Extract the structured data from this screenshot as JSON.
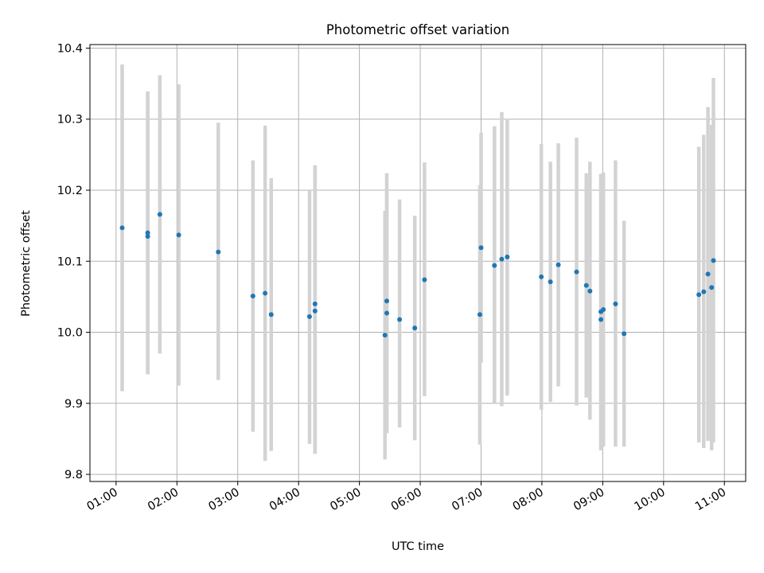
{
  "chart_data": {
    "type": "scatter",
    "title": "Photometric offset variation",
    "xlabel": "UTC time",
    "ylabel": "Photometric offset",
    "x_unit": "hours UTC",
    "xlim": [
      0.57,
      11.35
    ],
    "ylim": [
      9.79,
      10.405
    ],
    "x_ticks": [
      {
        "value": 1,
        "label": "01:00"
      },
      {
        "value": 2,
        "label": "02:00"
      },
      {
        "value": 3,
        "label": "03:00"
      },
      {
        "value": 4,
        "label": "04:00"
      },
      {
        "value": 5,
        "label": "05:00"
      },
      {
        "value": 6,
        "label": "06:00"
      },
      {
        "value": 7,
        "label": "07:00"
      },
      {
        "value": 8,
        "label": "08:00"
      },
      {
        "value": 9,
        "label": "09:00"
      },
      {
        "value": 10,
        "label": "10:00"
      },
      {
        "value": 11,
        "label": "11:00"
      }
    ],
    "y_ticks": [
      {
        "value": 9.8,
        "label": "9.8"
      },
      {
        "value": 9.9,
        "label": "9.9"
      },
      {
        "value": 10.0,
        "label": "10.0"
      },
      {
        "value": 10.1,
        "label": "10.1"
      },
      {
        "value": 10.2,
        "label": "10.2"
      },
      {
        "value": 10.3,
        "label": "10.3"
      },
      {
        "value": 10.4,
        "label": "10.4"
      }
    ],
    "grid": true,
    "point_color": "#1f77b4",
    "errorbar_color": "#d3d3d3",
    "points": [
      {
        "x": 1.1,
        "y": 10.147,
        "lo": 9.917,
        "hi": 10.377
      },
      {
        "x": 1.52,
        "y": 10.14,
        "lo": 9.941,
        "hi": 10.339
      },
      {
        "x": 1.52,
        "y": 10.135,
        "lo": 9.941,
        "hi": 10.339
      },
      {
        "x": 1.72,
        "y": 10.166,
        "lo": 9.97,
        "hi": 10.362
      },
      {
        "x": 2.03,
        "y": 10.137,
        "lo": 9.925,
        "hi": 10.349
      },
      {
        "x": 2.68,
        "y": 10.113,
        "lo": 9.933,
        "hi": 10.295
      },
      {
        "x": 3.25,
        "y": 10.051,
        "lo": 9.86,
        "hi": 10.242
      },
      {
        "x": 3.45,
        "y": 10.055,
        "lo": 9.819,
        "hi": 10.291
      },
      {
        "x": 3.55,
        "y": 10.025,
        "lo": 9.833,
        "hi": 10.217
      },
      {
        "x": 4.18,
        "y": 10.022,
        "lo": 9.843,
        "hi": 10.2
      },
      {
        "x": 4.27,
        "y": 10.04,
        "lo": 9.829,
        "hi": 10.235
      },
      {
        "x": 4.27,
        "y": 10.03,
        "lo": 9.829,
        "hi": 10.235
      },
      {
        "x": 5.42,
        "y": 9.996,
        "lo": 9.821,
        "hi": 10.171
      },
      {
        "x": 5.45,
        "y": 10.044,
        "lo": 9.858,
        "hi": 10.224
      },
      {
        "x": 5.45,
        "y": 10.027,
        "lo": 9.858,
        "hi": 10.196
      },
      {
        "x": 5.66,
        "y": 10.018,
        "lo": 9.866,
        "hi": 10.187
      },
      {
        "x": 5.91,
        "y": 10.006,
        "lo": 9.848,
        "hi": 10.164
      },
      {
        "x": 6.07,
        "y": 10.074,
        "lo": 9.91,
        "hi": 10.239
      },
      {
        "x": 6.98,
        "y": 10.025,
        "lo": 9.842,
        "hi": 10.207
      },
      {
        "x": 7.0,
        "y": 10.119,
        "lo": 9.957,
        "hi": 10.281
      },
      {
        "x": 7.22,
        "y": 10.094,
        "lo": 9.9,
        "hi": 10.29
      },
      {
        "x": 7.34,
        "y": 10.103,
        "lo": 9.896,
        "hi": 10.31
      },
      {
        "x": 7.43,
        "y": 10.106,
        "lo": 9.911,
        "hi": 10.301
      },
      {
        "x": 7.99,
        "y": 10.078,
        "lo": 9.891,
        "hi": 10.265
      },
      {
        "x": 8.14,
        "y": 10.071,
        "lo": 9.902,
        "hi": 10.24
      },
      {
        "x": 8.27,
        "y": 10.095,
        "lo": 9.924,
        "hi": 10.266
      },
      {
        "x": 8.57,
        "y": 10.085,
        "lo": 9.897,
        "hi": 10.274
      },
      {
        "x": 8.73,
        "y": 10.066,
        "lo": 9.908,
        "hi": 10.224
      },
      {
        "x": 8.79,
        "y": 10.058,
        "lo": 9.877,
        "hi": 10.24
      },
      {
        "x": 8.97,
        "y": 10.029,
        "lo": 9.834,
        "hi": 10.223
      },
      {
        "x": 8.97,
        "y": 10.018,
        "lo": 9.834,
        "hi": 10.223
      },
      {
        "x": 9.01,
        "y": 10.032,
        "lo": 9.839,
        "hi": 10.225
      },
      {
        "x": 9.21,
        "y": 10.04,
        "lo": 9.839,
        "hi": 10.242
      },
      {
        "x": 9.35,
        "y": 9.998,
        "lo": 9.839,
        "hi": 10.157
      },
      {
        "x": 10.58,
        "y": 10.053,
        "lo": 9.845,
        "hi": 10.261
      },
      {
        "x": 10.66,
        "y": 10.057,
        "lo": 9.837,
        "hi": 10.278
      },
      {
        "x": 10.73,
        "y": 10.082,
        "lo": 9.847,
        "hi": 10.317
      },
      {
        "x": 10.79,
        "y": 10.063,
        "lo": 9.834,
        "hi": 10.292
      },
      {
        "x": 10.82,
        "y": 10.101,
        "lo": 9.845,
        "hi": 10.358
      }
    ]
  }
}
